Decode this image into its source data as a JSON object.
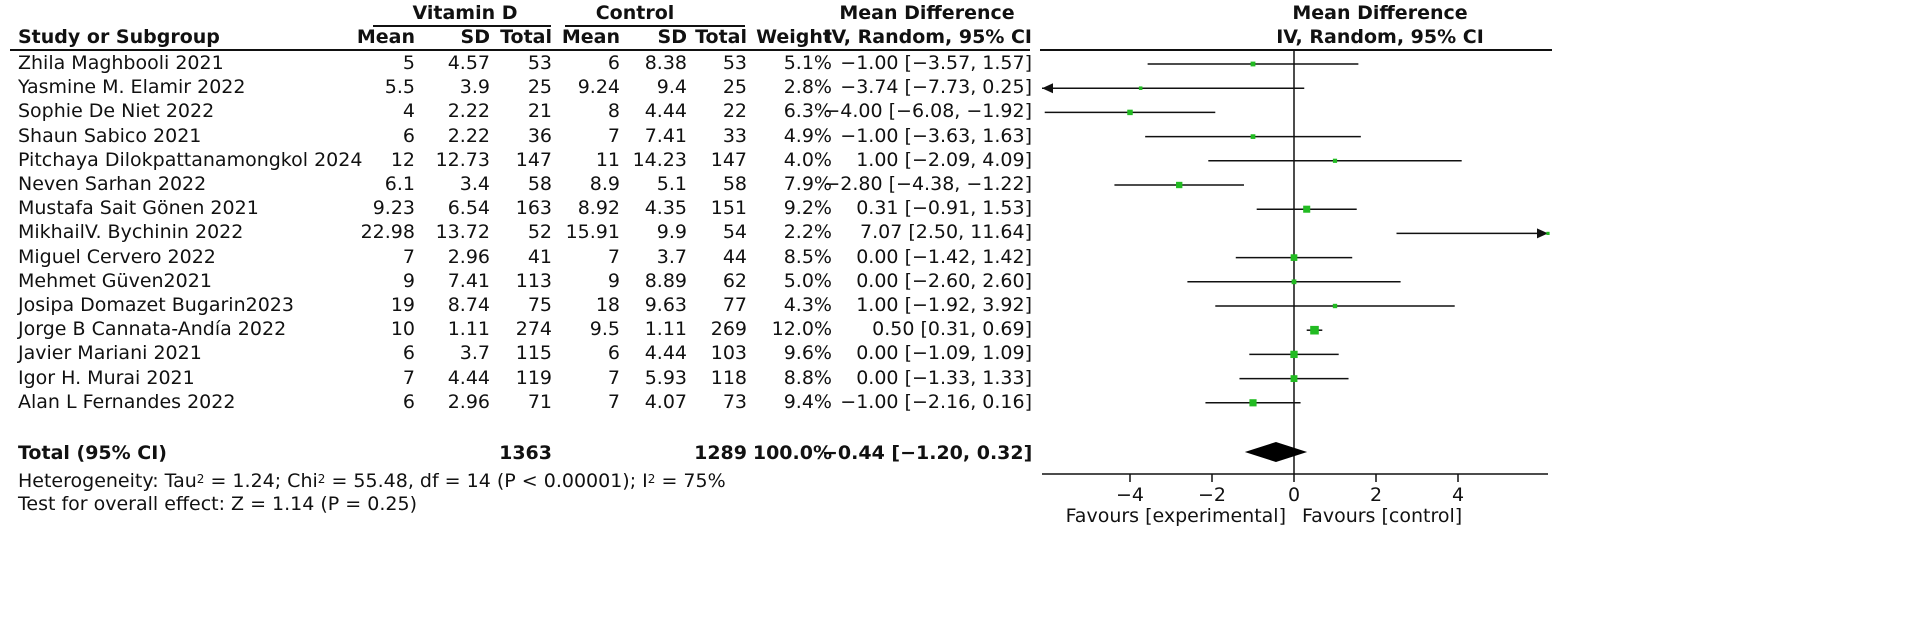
{
  "headers": {
    "group1": "Vitamin D",
    "group2": "Control",
    "study": "Study or Subgroup",
    "mean": "Mean",
    "sd": "SD",
    "total": "Total",
    "weight": "Weight",
    "md_title": "Mean Difference",
    "md_method": "IV, Random, 95% CI",
    "plot_title": "Mean Difference",
    "plot_method": "IV, Random, 95% CI"
  },
  "studies": [
    {
      "name": "Zhila Maghbooli 2021",
      "m1": "5",
      "sd1": "4.57",
      "n1": "53",
      "m2": "6",
      "sd2": "8.38",
      "n2": "53",
      "weight": "5.1%",
      "ci_text": "−1.00 [−3.57, 1.57]"
    },
    {
      "name": "Yasmine M. Elamir 2022",
      "m1": "5.5",
      "sd1": "3.9",
      "n1": "25",
      "m2": "9.24",
      "sd2": "9.4",
      "n2": "25",
      "weight": "2.8%",
      "ci_text": "−3.74 [−7.73, 0.25]"
    },
    {
      "name": "Sophie De Niet 2022",
      "m1": "4",
      "sd1": "2.22",
      "n1": "21",
      "m2": "8",
      "sd2": "4.44",
      "n2": "22",
      "weight": "6.3%",
      "ci_text": "−4.00 [−6.08, −1.92]"
    },
    {
      "name": "Shaun Sabico 2021",
      "m1": "6",
      "sd1": "2.22",
      "n1": "36",
      "m2": "7",
      "sd2": "7.41",
      "n2": "33",
      "weight": "4.9%",
      "ci_text": "−1.00 [−3.63, 1.63]"
    },
    {
      "name": "Pitchaya Dilokpattanamongkol 2024",
      "m1": "12",
      "sd1": "12.73",
      "n1": "147",
      "m2": "11",
      "sd2": "14.23",
      "n2": "147",
      "weight": "4.0%",
      "ci_text": "1.00 [−2.09, 4.09]"
    },
    {
      "name": "Neven Sarhan 2022",
      "m1": "6.1",
      "sd1": "3.4",
      "n1": "58",
      "m2": "8.9",
      "sd2": "5.1",
      "n2": "58",
      "weight": "7.9%",
      "ci_text": "−2.80 [−4.38, −1.22]"
    },
    {
      "name": "Mustafa Sait Gönen 2021",
      "m1": "9.23",
      "sd1": "6.54",
      "n1": "163",
      "m2": "8.92",
      "sd2": "4.35",
      "n2": "151",
      "weight": "9.2%",
      "ci_text": "0.31 [−0.91, 1.53]"
    },
    {
      "name": "MikhailV. Bychinin 2022",
      "m1": "22.98",
      "sd1": "13.72",
      "n1": "52",
      "m2": "15.91",
      "sd2": "9.9",
      "n2": "54",
      "weight": "2.2%",
      "ci_text": "7.07 [2.50, 11.64]"
    },
    {
      "name": "Miguel Cervero 2022",
      "m1": "7",
      "sd1": "2.96",
      "n1": "41",
      "m2": "7",
      "sd2": "3.7",
      "n2": "44",
      "weight": "8.5%",
      "ci_text": "0.00 [−1.42, 1.42]"
    },
    {
      "name": "Mehmet Güven2021",
      "m1": "9",
      "sd1": "7.41",
      "n1": "113",
      "m2": "9",
      "sd2": "8.89",
      "n2": "62",
      "weight": "5.0%",
      "ci_text": "0.00 [−2.60, 2.60]"
    },
    {
      "name": "Josipa Domazet Bugarin2023",
      "m1": "19",
      "sd1": "8.74",
      "n1": "75",
      "m2": "18",
      "sd2": "9.63",
      "n2": "77",
      "weight": "4.3%",
      "ci_text": "1.00 [−1.92, 3.92]"
    },
    {
      "name": "Jorge B Cannata-Andía 2022",
      "m1": "10",
      "sd1": "1.11",
      "n1": "274",
      "m2": "9.5",
      "sd2": "1.11",
      "n2": "269",
      "weight": "12.0%",
      "ci_text": "0.50 [0.31, 0.69]"
    },
    {
      "name": "Javier Mariani 2021",
      "m1": "6",
      "sd1": "3.7",
      "n1": "115",
      "m2": "6",
      "sd2": "4.44",
      "n2": "103",
      "weight": "9.6%",
      "ci_text": "0.00 [−1.09, 1.09]"
    },
    {
      "name": "Igor H. Murai 2021",
      "m1": "7",
      "sd1": "4.44",
      "n1": "119",
      "m2": "7",
      "sd2": "5.93",
      "n2": "118",
      "weight": "8.8%",
      "ci_text": "0.00 [−1.33, 1.33]"
    },
    {
      "name": "Alan L Fernandes 2022",
      "m1": "6",
      "sd1": "2.96",
      "n1": "71",
      "m2": "7",
      "sd2": "4.07",
      "n2": "73",
      "weight": "9.4%",
      "ci_text": "−1.00 [−2.16, 0.16]"
    }
  ],
  "total": {
    "label": "Total (95% CI)",
    "n1": "1363",
    "n2": "1289",
    "weight": "100.0%",
    "ci_text": "−0.44 [−1.20, 0.32]"
  },
  "heterogeneity": {
    "prefix": "Heterogeneity: Tau",
    "tau_sup": "2",
    "middle": " = 1.24; Chi",
    "chi_sup": "2",
    "rest": " = 55.48, df = 14 (P < 0.00001); I",
    "i_sup": "2",
    "end": " = 75%"
  },
  "overall_test": "Test for overall effect: Z = 1.14 (P = 0.25)",
  "axis": {
    "favours_left": "Favours [experimental]",
    "favours_right": "Favours [control]"
  },
  "colors": {
    "marker": "#22bb22",
    "line": "#111111",
    "diamond": "#000000"
  },
  "chart_data": {
    "type": "forest",
    "xlim": [
      -7.2,
      7.0
    ],
    "ticks": [
      -4,
      -2,
      0,
      2,
      4
    ],
    "tick_labels": [
      "−4",
      "−2",
      "0",
      "2",
      "4"
    ],
    "studies": [
      {
        "md": -1.0,
        "lo": -3.57,
        "hi": 1.57,
        "weight": 5.1
      },
      {
        "md": -3.74,
        "lo": -7.73,
        "hi": 0.25,
        "weight": 2.8
      },
      {
        "md": -4.0,
        "lo": -6.08,
        "hi": -1.92,
        "weight": 6.3
      },
      {
        "md": -1.0,
        "lo": -3.63,
        "hi": 1.63,
        "weight": 4.9
      },
      {
        "md": 1.0,
        "lo": -2.09,
        "hi": 4.09,
        "weight": 4.0
      },
      {
        "md": -2.8,
        "lo": -4.38,
        "hi": -1.22,
        "weight": 7.9
      },
      {
        "md": 0.31,
        "lo": -0.91,
        "hi": 1.53,
        "weight": 9.2
      },
      {
        "md": 7.07,
        "lo": 2.5,
        "hi": 11.64,
        "weight": 2.2
      },
      {
        "md": 0.0,
        "lo": -1.42,
        "hi": 1.42,
        "weight": 8.5
      },
      {
        "md": 0.0,
        "lo": -2.6,
        "hi": 2.6,
        "weight": 5.0
      },
      {
        "md": 1.0,
        "lo": -1.92,
        "hi": 3.92,
        "weight": 4.3
      },
      {
        "md": 0.5,
        "lo": 0.31,
        "hi": 0.69,
        "weight": 12.0
      },
      {
        "md": 0.0,
        "lo": -1.09,
        "hi": 1.09,
        "weight": 9.6
      },
      {
        "md": 0.0,
        "lo": -1.33,
        "hi": 1.33,
        "weight": 8.8
      },
      {
        "md": -1.0,
        "lo": -2.16,
        "hi": 0.16,
        "weight": 9.4
      }
    ],
    "pooled": {
      "md": -0.44,
      "lo": -1.2,
      "hi": 0.32
    }
  }
}
